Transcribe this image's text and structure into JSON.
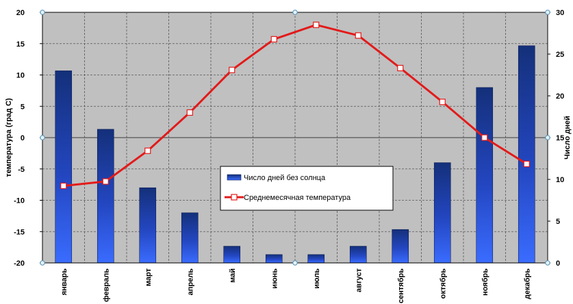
{
  "chart_data": {
    "type": "bar",
    "categories": [
      "январь",
      "февраль",
      "март",
      "апрель",
      "май",
      "июнь",
      "июль",
      "август",
      "сентябрь",
      "октябрь",
      "ноябрь",
      "декабрь"
    ],
    "series": [
      {
        "name": "Число дней без солнца",
        "type": "bar",
        "axis": "right",
        "values": [
          23,
          16,
          9,
          6,
          2,
          1,
          1,
          2,
          4,
          12,
          21,
          26
        ],
        "color": "#1a3aa0"
      },
      {
        "name": "Среднемесячная температура",
        "type": "line",
        "axis": "left",
        "values": [
          -7.7,
          -7.0,
          -2.1,
          4.0,
          10.8,
          15.7,
          18.0,
          16.3,
          11.1,
          5.7,
          0.0,
          -4.2
        ],
        "color": "#e31a1a"
      }
    ],
    "y_left": {
      "label": "температура  (град С)",
      "min": -20,
      "max": 20,
      "ticks": [
        "-20",
        "-15",
        "-10",
        "-5",
        "0",
        "5",
        "10",
        "15",
        "20"
      ]
    },
    "y_right": {
      "label": "Число дней",
      "min": 0,
      "max": 30,
      "ticks": [
        "0",
        "5",
        "10",
        "15",
        "20",
        "25",
        "30"
      ]
    },
    "grid": true,
    "legend_placement": "center",
    "plot_background": "#c0c0c0"
  }
}
